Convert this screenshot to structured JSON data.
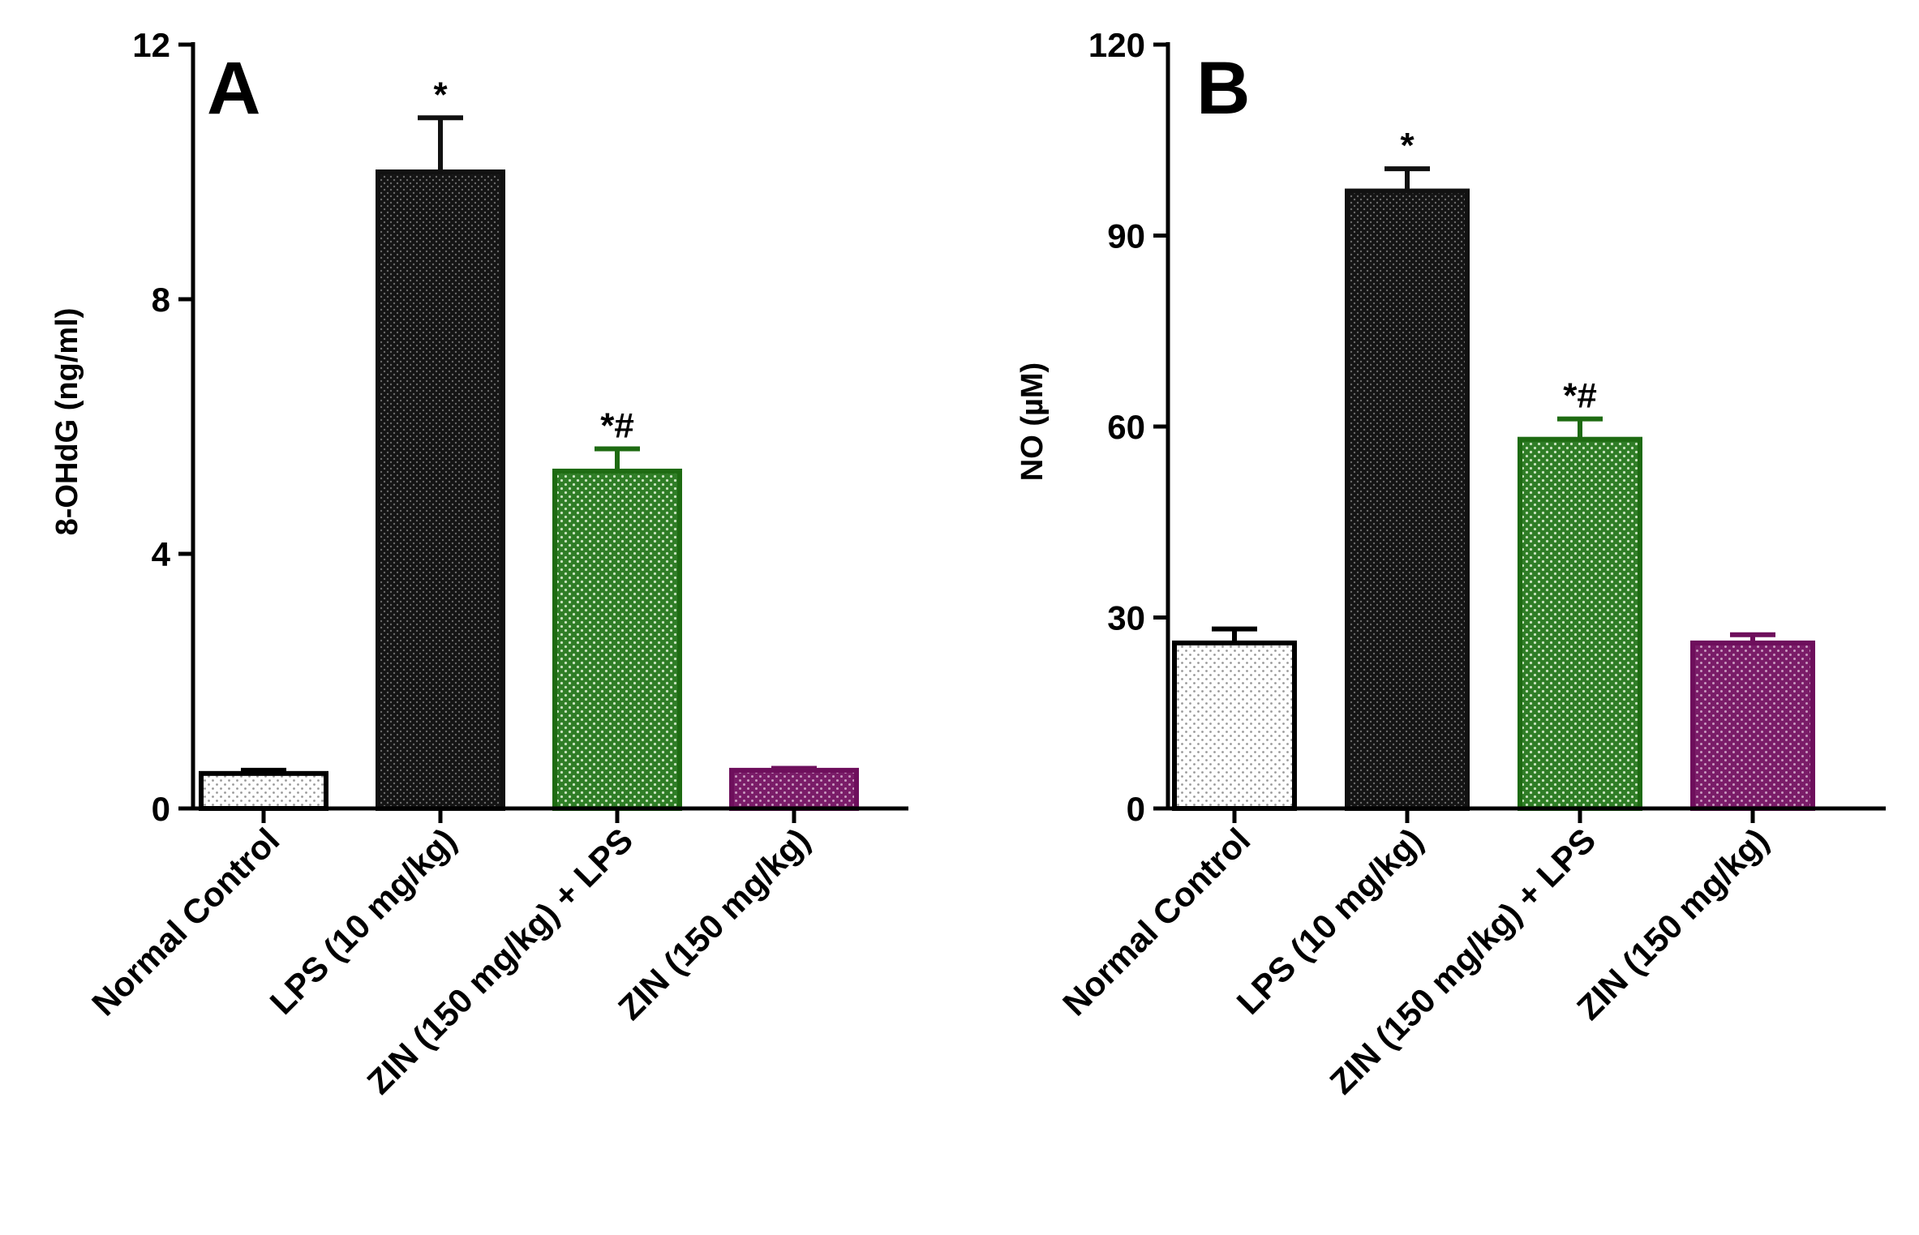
{
  "colors": {
    "normal_control": "#ffffff",
    "lps": "#111111",
    "zin_lps": "#1e6b12",
    "zin": "#6e0f5c"
  },
  "chart_data": [
    {
      "type": "bar",
      "panel_label": "A",
      "ylabel": "8-OHdG (ng/ml)",
      "ylim": [
        0,
        12
      ],
      "yticks": [
        "0",
        "4",
        "8",
        "12"
      ],
      "categories": [
        "Normal Control",
        "LPS (10 mg/kg)",
        "ZIN (150 mg/kg) + LPS",
        "ZIN (150 mg/kg)"
      ],
      "values": [
        0.55,
        10.0,
        5.3,
        0.6
      ],
      "errors": [
        0.05,
        0.85,
        0.35,
        0.03
      ],
      "annotations": [
        "",
        "*",
        "*#",
        ""
      ]
    },
    {
      "type": "bar",
      "panel_label": "B",
      "ylabel": "NO (µM)",
      "ylim": [
        0,
        120
      ],
      "yticks": [
        "0",
        "30",
        "60",
        "90",
        "120"
      ],
      "categories": [
        "Normal Control",
        "LPS (10 mg/kg)",
        "ZIN (150 mg/kg) + LPS",
        "ZIN (150 mg/kg)"
      ],
      "values": [
        26,
        97,
        58,
        26
      ],
      "errors": [
        2.2,
        3.5,
        3.2,
        1.3
      ],
      "annotations": [
        "",
        "*",
        "*#",
        ""
      ]
    }
  ]
}
